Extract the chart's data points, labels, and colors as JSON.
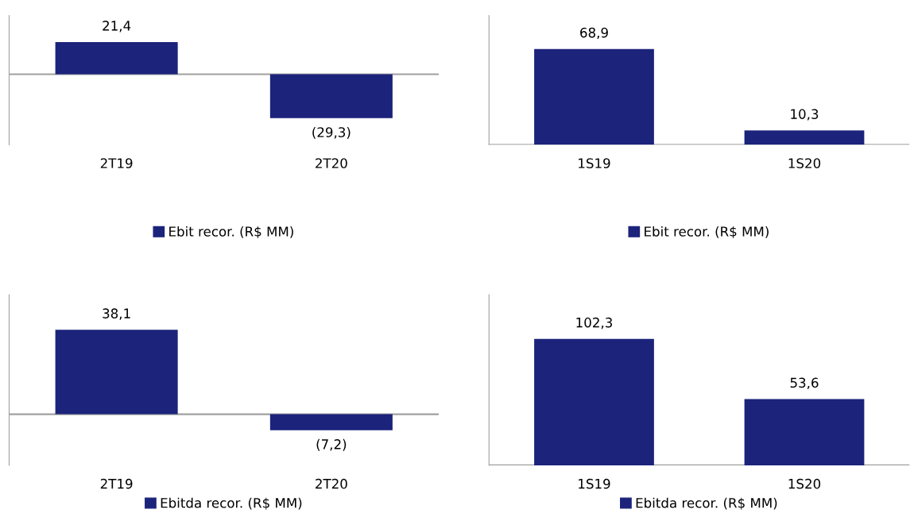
{
  "chart_data": [
    {
      "type": "bar",
      "categories": [
        "2T19",
        "2T20"
      ],
      "series": [
        {
          "name": "Ebit recor. (R$ MM)",
          "color": "#1b237b",
          "values": [
            21.4,
            -29.3
          ],
          "value_labels": [
            "21,4",
            "(29,3)"
          ]
        }
      ],
      "legend": "bottom",
      "tick_labels": "x",
      "grid": false
    },
    {
      "type": "bar",
      "categories": [
        "1S19",
        "1S20"
      ],
      "series": [
        {
          "name": "Ebit recor. (R$ MM)",
          "color": "#1b237b",
          "values": [
            68.9,
            10.3
          ],
          "value_labels": [
            "68,9",
            "10,3"
          ]
        }
      ],
      "legend": "bottom",
      "tick_labels": "x",
      "grid": false
    },
    {
      "type": "bar",
      "categories": [
        "2T19",
        "2T20"
      ],
      "series": [
        {
          "name": "Ebitda recor. (R$ MM)",
          "color": "#1b237b",
          "values": [
            38.1,
            -7.2
          ],
          "value_labels": [
            "38,1",
            "(7,2)"
          ]
        }
      ],
      "legend": "bottom",
      "tick_labels": "x",
      "grid": false
    },
    {
      "type": "bar",
      "categories": [
        "1S19",
        "1S20"
      ],
      "series": [
        {
          "name": "Ebitda recor. (R$ MM)",
          "color": "#1b237b",
          "values": [
            102.3,
            53.6
          ],
          "value_labels": [
            "102,3",
            "53,6"
          ]
        }
      ],
      "legend": "bottom",
      "tick_labels": "x",
      "grid": false
    }
  ]
}
